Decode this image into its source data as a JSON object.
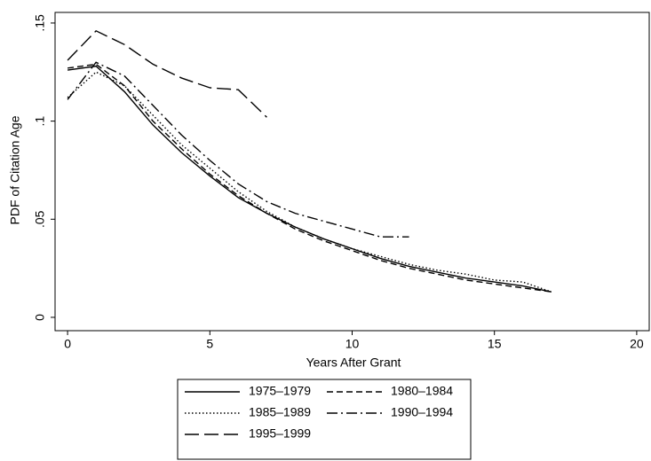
{
  "chart_data": {
    "type": "line",
    "x_label": "Years After Grant",
    "y_label": "PDF of Citation Age",
    "x": [
      0,
      1,
      2,
      3,
      4,
      5,
      6,
      7,
      8,
      9,
      10,
      11,
      12,
      13,
      14,
      15,
      16,
      17
    ],
    "series": [
      {
        "name": "1975–1979",
        "color": "#000000",
        "dash": "none",
        "values": [
          0.126,
          0.128,
          0.115,
          0.098,
          0.084,
          0.072,
          0.061,
          0.053,
          0.046,
          0.04,
          0.035,
          0.03,
          0.026,
          0.023,
          0.02,
          0.018,
          0.016,
          0.013
        ]
      },
      {
        "name": "1980–1984",
        "color": "#000000",
        "dash": "7 4",
        "values": [
          0.127,
          0.129,
          0.118,
          0.1,
          0.086,
          0.073,
          0.062,
          0.053,
          0.045,
          0.039,
          0.034,
          0.029,
          0.025,
          0.022,
          0.019,
          0.017,
          0.015,
          0.013
        ]
      },
      {
        "name": "1985–1989",
        "color": "#000000",
        "dash": "1.5 2.5",
        "values": [
          0.112,
          0.125,
          0.118,
          0.103,
          0.088,
          0.076,
          0.064,
          0.054,
          0.046,
          0.04,
          0.035,
          0.031,
          0.027,
          0.024,
          0.022,
          0.019,
          0.018,
          0.013
        ]
      },
      {
        "name": "1990–1994",
        "color": "#000000",
        "dash": "12 4 2 4",
        "values": [
          0.111,
          0.13,
          0.123,
          0.108,
          0.093,
          0.08,
          0.068,
          0.059,
          0.053,
          0.049,
          0.045,
          0.041,
          0.041,
          null,
          null,
          null,
          null,
          null
        ]
      },
      {
        "name": "1995–1999",
        "color": "#000000",
        "dash": "16 6",
        "values": [
          0.131,
          0.146,
          0.139,
          0.129,
          0.122,
          0.117,
          0.116,
          0.102,
          null,
          null,
          null,
          null,
          null,
          null,
          null,
          null,
          null,
          null
        ]
      }
    ],
    "xlim": [
      -0.44,
      20.44
    ],
    "xticks": [
      0,
      5,
      10,
      15,
      20
    ],
    "ylim": [
      -0.0068,
      0.1554
    ],
    "yticks": [
      0,
      {
        "value": 0.05,
        "label": ".05"
      },
      {
        "value": 0.1,
        "label": ".1"
      },
      {
        "value": 0.15,
        "label": ".15"
      }
    ],
    "grid": false
  }
}
